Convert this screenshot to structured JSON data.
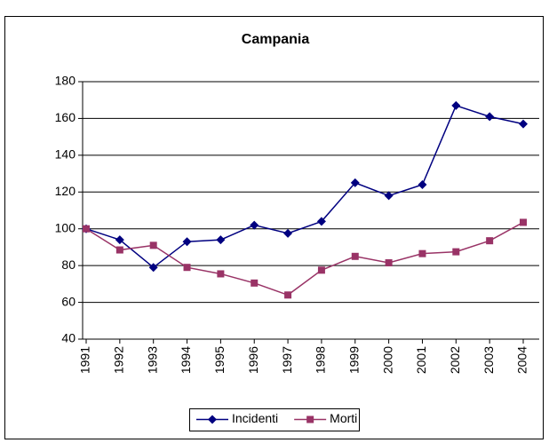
{
  "chart_data": {
    "type": "line",
    "title": "Campania",
    "categories": [
      "1991",
      "1992",
      "1993",
      "1994",
      "1995",
      "1996",
      "1997",
      "1998",
      "1999",
      "2000",
      "2001",
      "2002",
      "2003",
      "2004"
    ],
    "series": [
      {
        "name": "Incidenti",
        "color": "#000080",
        "marker": "diamond",
        "values": [
          100,
          94,
          79,
          93,
          94,
          102,
          97.5,
          104,
          125,
          118,
          124,
          167,
          161,
          157
        ]
      },
      {
        "name": "Morti",
        "color": "#993366",
        "marker": "square",
        "values": [
          100,
          88.5,
          91,
          79,
          75.5,
          70.5,
          64,
          77.5,
          85,
          81.5,
          86.5,
          87.5,
          93.5,
          103.5
        ]
      }
    ],
    "ylim": [
      40,
      180
    ],
    "yticks": [
      40,
      60,
      80,
      100,
      120,
      140,
      160,
      180
    ],
    "grid": true,
    "legend": "bottom"
  }
}
